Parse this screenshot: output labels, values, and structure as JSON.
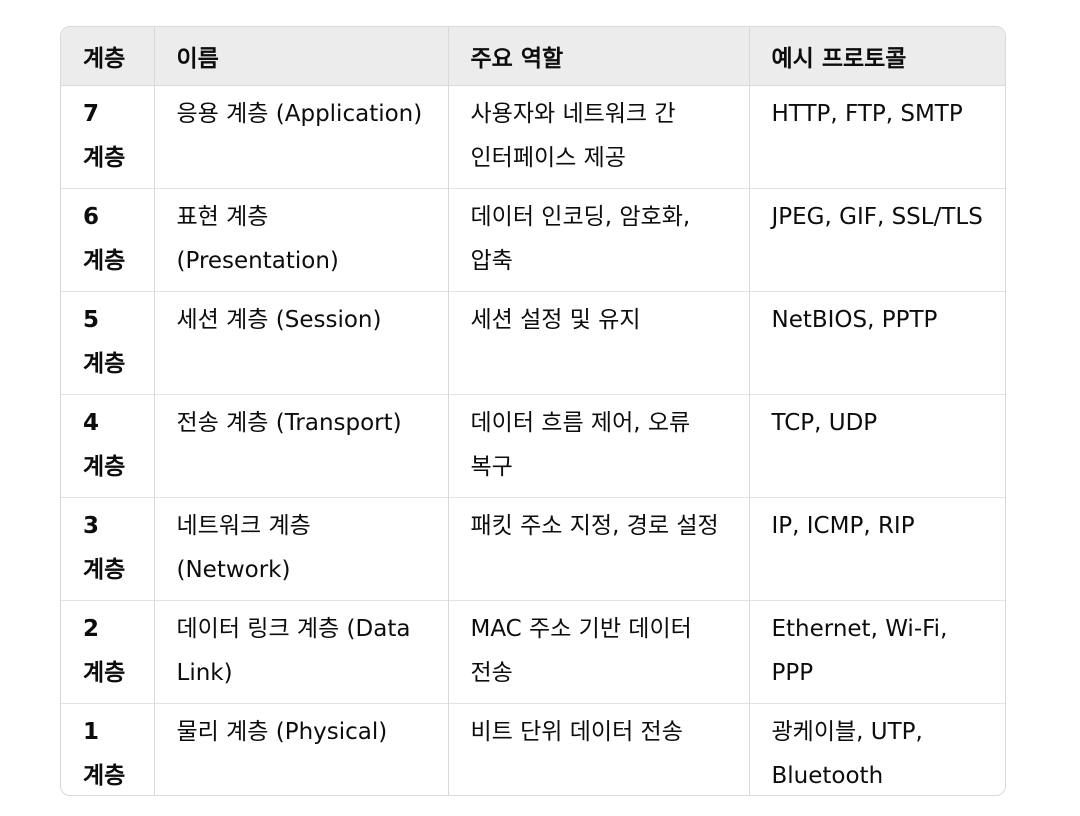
{
  "table": {
    "headers": [
      "계층",
      "이름",
      "주요 역할",
      "예시 프로토콜"
    ],
    "rows": [
      {
        "layer": "7 계층",
        "name": "응용 계층 (Application)",
        "role": "사용자와 네트워크 간 인터페이스 제공",
        "protocols": "HTTP, FTP, SMTP"
      },
      {
        "layer": "6 계층",
        "name": "표현 계층 (Presentation)",
        "role": "데이터 인코딩, 암호화, 압축",
        "protocols": "JPEG, GIF, SSL/TLS"
      },
      {
        "layer": "5 계층",
        "name": "세션 계층 (Session)",
        "role": "세션 설정 및 유지",
        "protocols": "NetBIOS, PPTP"
      },
      {
        "layer": "4 계층",
        "name": "전송 계층 (Transport)",
        "role": "데이터 흐름 제어, 오류 복구",
        "protocols": "TCP, UDP"
      },
      {
        "layer": "3 계층",
        "name": "네트워크 계층 (Network)",
        "role": "패킷 주소 지정, 경로 설정",
        "protocols": "IP, ICMP, RIP"
      },
      {
        "layer": "2 계층",
        "name": "데이터 링크 계층 (Data Link)",
        "role": "MAC 주소 기반 데이터 전송",
        "protocols": "Ethernet, Wi-Fi, PPP"
      },
      {
        "layer": "1 계층",
        "name": "물리 계층 (Physical)",
        "role": "비트 단위 데이터 전송",
        "protocols": "광케이블, UTP, Bluetooth"
      }
    ]
  }
}
